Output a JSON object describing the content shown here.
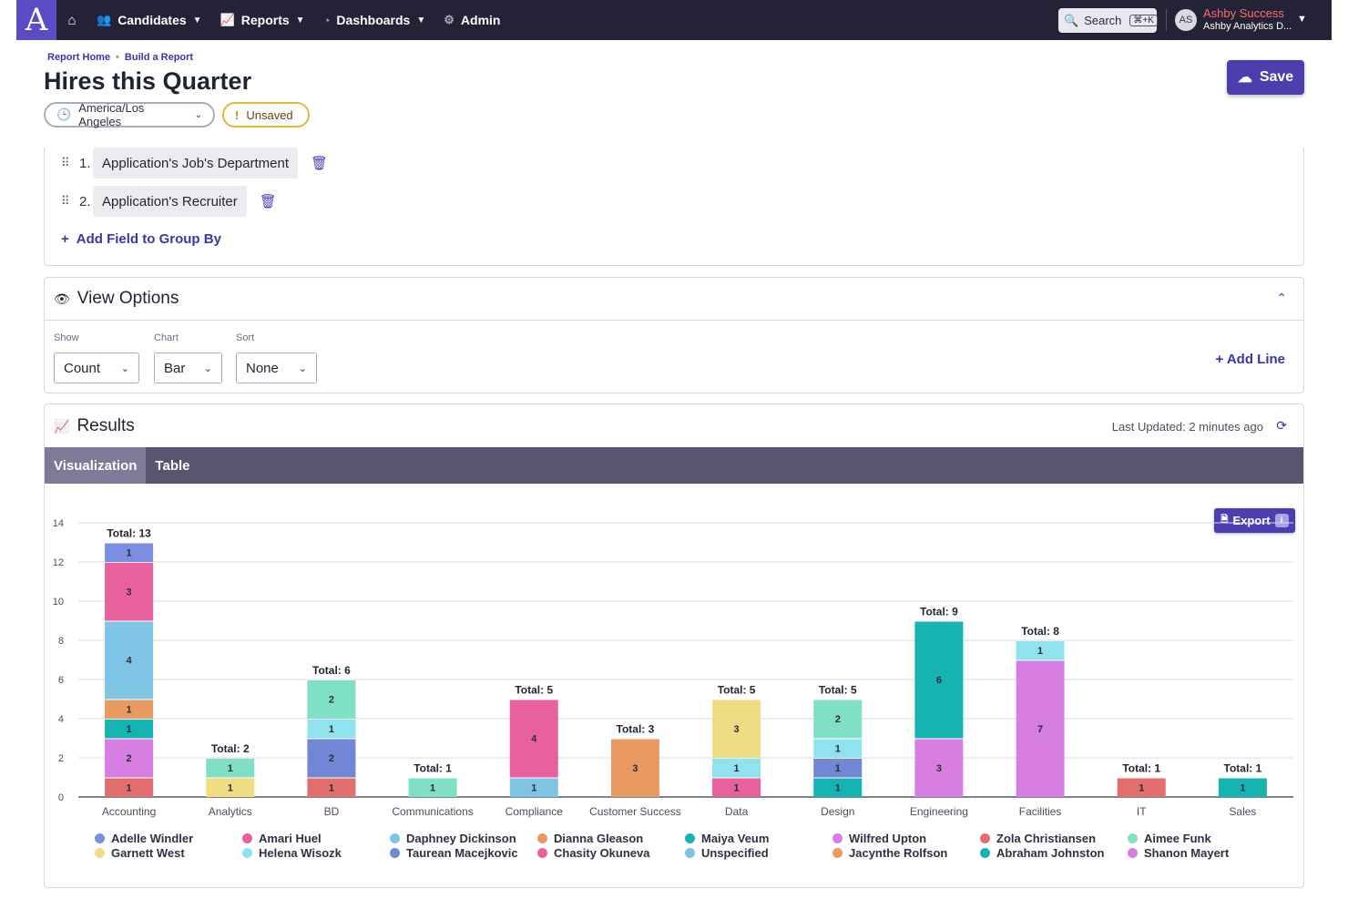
{
  "nav": {
    "logo": "A",
    "items": [
      {
        "label": "Candidates",
        "icon": "people-icon"
      },
      {
        "label": "Reports",
        "icon": "chart-line-icon"
      },
      {
        "label": "Dashboards",
        "icon": "gauge-icon"
      },
      {
        "label": "Admin",
        "icon": "gear-icon"
      }
    ],
    "search_label": "Search",
    "search_shortcut": "⌘+K",
    "avatar_initials": "AS",
    "user_name": "Ashby Success",
    "org_name": "Ashby Analytics D..."
  },
  "breadcrumb": [
    "Report Home",
    "Build a Report"
  ],
  "page": {
    "title": "Hires this Quarter",
    "timezone": "America/Los Angeles",
    "status": "Unsaved",
    "save_label": "Save"
  },
  "group_by": {
    "fields": [
      {
        "num": "1.",
        "label": "Application's Job's Department"
      },
      {
        "num": "2.",
        "label": "Application's Recruiter"
      }
    ],
    "add_label": "Add Field to Group By"
  },
  "view_options": {
    "title": "View Options",
    "show_label": "Show",
    "show_value": "Count",
    "chart_label": "Chart",
    "chart_value": "Bar",
    "sort_label": "Sort",
    "sort_value": "None",
    "add_line": "+ Add Line"
  },
  "results": {
    "title": "Results",
    "last_updated": "Last Updated: 2 minutes ago",
    "tabs": [
      "Visualization",
      "Table"
    ],
    "export_label": "Export"
  },
  "colors": {
    "Adelle Windler": "#7b8ee0",
    "Garnett West": "#f0dc82",
    "Amari Huel": "#e8609e",
    "Helena Wisozk": "#8ee3ee",
    "Daphney Dickinson": "#7ec4e4",
    "Taurean Macejkovic": "#7286d6",
    "Dianna Gleason": "#e89a60",
    "Chasity Okuneva": "#e8609e",
    "Maiya Veum": "#16b3b3",
    "Unspecified": "#7ec4e4",
    "Wilfred Upton": "#d77ee3",
    "Jacynthe Rolfson": "#e89a60",
    "Zola Christiansen": "#e26e6e",
    "Abraham Johnston": "#16b3b3",
    "Aimee Funk": "#7fe0c6",
    "Shanon Mayert": "#d77ee3"
  },
  "chart_data": {
    "type": "bar",
    "stacked": true,
    "categories": [
      "Accounting",
      "Analytics",
      "BD",
      "Communications",
      "Compliance",
      "Customer Success",
      "Data",
      "Design",
      "Engineering",
      "Facilities",
      "IT",
      "Sales"
    ],
    "ylim": [
      0,
      14
    ],
    "yticks": [
      0,
      2,
      4,
      6,
      8,
      10,
      12,
      14
    ],
    "grid": true,
    "legend_position": "bottom",
    "totals": [
      13,
      2,
      6,
      1,
      5,
      3,
      5,
      5,
      9,
      8,
      1,
      1
    ],
    "total_prefix": "Total: ",
    "series": [
      {
        "name": "Zola Christiansen",
        "values": [
          1,
          0,
          1,
          0,
          0,
          0,
          0,
          0,
          0,
          0,
          1,
          0
        ]
      },
      {
        "name": "Wilfred Upton",
        "values": [
          2,
          0,
          0,
          0,
          0,
          0,
          0,
          0,
          3,
          7,
          0,
          0
        ]
      },
      {
        "name": "Abraham Johnston",
        "values": [
          1,
          0,
          0,
          0,
          0,
          0,
          0,
          1,
          6,
          0,
          0,
          1
        ]
      },
      {
        "name": "Jacynthe Rolfson",
        "values": [
          1,
          0,
          0,
          0,
          0,
          3,
          0,
          0,
          0,
          0,
          0,
          0
        ]
      },
      {
        "name": "Garnett West",
        "values": [
          0,
          1,
          0,
          0,
          0,
          0,
          0,
          0,
          0,
          0,
          0,
          0
        ]
      },
      {
        "name": "Taurean Macejkovic",
        "values": [
          0,
          0,
          2,
          0,
          0,
          0,
          0,
          1,
          0,
          0,
          0,
          0
        ]
      },
      {
        "name": "Chasity Okuneva",
        "values": [
          0,
          0,
          0,
          0,
          0,
          0,
          1,
          0,
          0,
          0,
          0,
          0
        ]
      },
      {
        "name": "Unspecified",
        "values": [
          4,
          0,
          0,
          0,
          1,
          0,
          0,
          0,
          0,
          0,
          0,
          0
        ]
      },
      {
        "name": "Helena Wisozk",
        "values": [
          0,
          0,
          1,
          0,
          0,
          0,
          1,
          1,
          0,
          1,
          0,
          0
        ]
      },
      {
        "name": "Aimee Funk",
        "values": [
          0,
          1,
          2,
          1,
          0,
          0,
          0,
          2,
          0,
          0,
          0,
          0
        ]
      },
      {
        "name": "Garnett West",
        "values": [
          0,
          0,
          0,
          0,
          0,
          0,
          3,
          0,
          0,
          0,
          0,
          0
        ]
      },
      {
        "name": "Amari Huel",
        "values": [
          3,
          0,
          0,
          0,
          4,
          0,
          0,
          0,
          0,
          0,
          0,
          0
        ]
      },
      {
        "name": "Adelle Windler",
        "values": [
          1,
          0,
          0,
          0,
          0,
          0,
          0,
          0,
          0,
          0,
          0,
          0
        ]
      }
    ],
    "legend": [
      "Adelle Windler",
      "Amari Huel",
      "Daphney Dickinson",
      "Dianna Gleason",
      "Maiya Veum",
      "Wilfred Upton",
      "Zola Christiansen",
      "Aimee Funk",
      "Garnett West",
      "Helena Wisozk",
      "Taurean Macejkovic",
      "Chasity Okuneva",
      "Unspecified",
      "Jacynthe Rolfson",
      "Abraham Johnston",
      "Shanon Mayert"
    ]
  }
}
